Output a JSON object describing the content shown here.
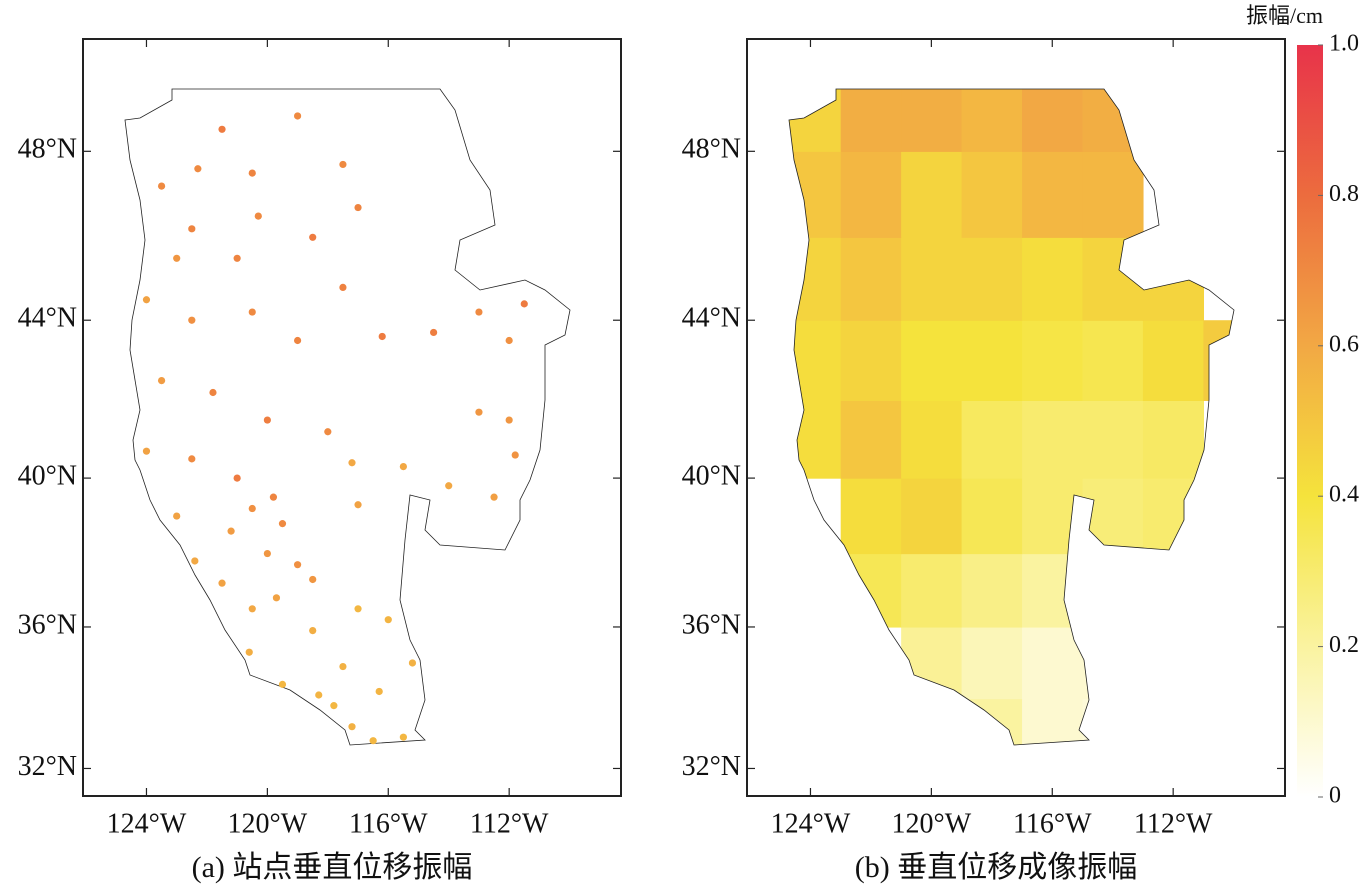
{
  "chart_data": [
    {
      "type": "scatter",
      "caption": "(a) 站点垂直位移振幅",
      "projection": "mercator",
      "xlim": [
        -126.1,
        -108.3
      ],
      "ylim": [
        31.2,
        50.5
      ],
      "xticks": [
        {
          "value": -124,
          "label": "124°W"
        },
        {
          "value": -120,
          "label": "120°W"
        },
        {
          "value": -116,
          "label": "116°W"
        },
        {
          "value": -112,
          "label": "112°W"
        }
      ],
      "yticks": [
        {
          "value": 32,
          "label": "32°N"
        },
        {
          "value": 36,
          "label": "36°N"
        },
        {
          "value": 40,
          "label": "40°N"
        },
        {
          "value": 44,
          "label": "44°N"
        },
        {
          "value": 48,
          "label": "48°N"
        }
      ],
      "series": [
        {
          "x": [
            -122.3,
            -122.5,
            -123.5,
            -121.5,
            -120.5,
            -119,
            -117.5,
            -117,
            -118.5,
            -120.3,
            -121,
            -123,
            -124,
            -122.5,
            -120.5,
            -119,
            -117.5,
            -116.2,
            -114.5,
            -113,
            -112,
            -111.5,
            -123.5,
            -121.8,
            -120,
            -118,
            -113,
            -112,
            -111.8,
            -124,
            -122.5,
            -121,
            -119.8,
            -119.5,
            -117,
            -115.5,
            -114,
            -112.5,
            -117.2,
            -123,
            -122.4,
            -121.5,
            -120,
            -119,
            -118.5,
            -120.5,
            -119.7,
            -118.5,
            -117,
            -116,
            -115.2,
            -120.6,
            -119.5,
            -118.3,
            -117.8,
            -117.2,
            -116.5,
            -115.5,
            -116.3,
            -117.5,
            -121.2,
            -120.5
          ],
          "y": [
            47.6,
            46.2,
            47.2,
            48.5,
            47.5,
            48.8,
            47.7,
            46.7,
            46,
            46.5,
            45.5,
            45.5,
            44.5,
            44,
            44.2,
            43.5,
            44.8,
            43.6,
            43.7,
            44.2,
            43.5,
            44.4,
            42.5,
            42.2,
            41.5,
            41.2,
            41.7,
            41.5,
            40.6,
            40.7,
            40.5,
            40,
            39.5,
            38.8,
            39.3,
            40.3,
            39.8,
            39.5,
            40.4,
            39,
            37.8,
            37.2,
            38,
            37.7,
            37.3,
            36.5,
            36.8,
            35.9,
            36.5,
            36.2,
            35,
            35.3,
            34.4,
            34.1,
            33.8,
            33.2,
            32.8,
            32.9,
            34.2,
            34.9,
            38.6,
            39.2
          ],
          "values": [
            0.7,
            0.72,
            0.7,
            0.75,
            0.72,
            0.7,
            0.7,
            0.72,
            0.75,
            0.7,
            0.72,
            0.66,
            0.62,
            0.68,
            0.7,
            0.72,
            0.73,
            0.75,
            0.74,
            0.7,
            0.68,
            0.75,
            0.64,
            0.72,
            0.74,
            0.7,
            0.66,
            0.66,
            0.67,
            0.62,
            0.7,
            0.75,
            0.72,
            0.7,
            0.62,
            0.6,
            0.6,
            0.63,
            0.6,
            0.62,
            0.6,
            0.62,
            0.66,
            0.68,
            0.66,
            0.6,
            0.62,
            0.58,
            0.55,
            0.56,
            0.57,
            0.58,
            0.55,
            0.56,
            0.55,
            0.57,
            0.55,
            0.55,
            0.56,
            0.57,
            0.64,
            0.68
          ]
        }
      ]
    },
    {
      "type": "heatmap",
      "caption": "(b) 垂直位移成像振幅",
      "projection": "mercator",
      "xlim": [
        -126.1,
        -108.3
      ],
      "ylim": [
        31.2,
        50.5
      ],
      "xticks": [
        {
          "value": -124,
          "label": "124°W"
        },
        {
          "value": -120,
          "label": "120°W"
        },
        {
          "value": -116,
          "label": "116°W"
        },
        {
          "value": -112,
          "label": "112°W"
        }
      ],
      "yticks": [
        {
          "value": 32,
          "label": "32°N"
        },
        {
          "value": 36,
          "label": "36°N"
        },
        {
          "value": 40,
          "label": "40°N"
        },
        {
          "value": 44,
          "label": "44°N"
        },
        {
          "value": 48,
          "label": "48°N"
        }
      ],
      "x": [
        -124,
        -122,
        -120,
        -118,
        -116,
        -114,
        -112,
        -110
      ],
      "y": [
        33,
        35,
        37,
        39,
        41,
        43,
        45,
        47,
        49
      ],
      "values": [
        [
          null,
          null,
          null,
          0.2,
          0.1,
          0.08,
          null,
          null
        ],
        [
          null,
          null,
          0.22,
          0.15,
          0.1,
          0.1,
          null,
          null
        ],
        [
          null,
          0.35,
          0.3,
          0.25,
          0.2,
          0.15,
          null,
          null
        ],
        [
          null,
          0.42,
          0.45,
          0.35,
          0.3,
          0.28,
          0.3,
          null
        ],
        [
          0.42,
          0.5,
          0.42,
          0.33,
          0.3,
          0.3,
          0.32,
          null
        ],
        [
          0.42,
          0.45,
          0.4,
          0.4,
          0.38,
          0.36,
          0.42,
          0.48
        ],
        [
          0.45,
          0.5,
          0.45,
          0.45,
          0.42,
          0.45,
          0.45,
          null
        ],
        [
          0.5,
          0.55,
          0.45,
          0.5,
          0.55,
          0.55,
          null,
          null
        ],
        [
          0.45,
          0.58,
          0.58,
          0.55,
          0.6,
          0.58,
          null,
          null
        ]
      ],
      "colorbar": {
        "title": "振幅/cm",
        "ylim": [
          0,
          1
        ],
        "yticks": [
          0,
          0.2,
          0.4,
          0.6,
          0.8,
          {
            "value": 1,
            "label": "1.0"
          }
        ],
        "colormap": [
          "#ffffff",
          "#faf3a0",
          "#f5e33c",
          "#f2a844",
          "#ec6c3e",
          "#e8334a"
        ]
      }
    }
  ]
}
